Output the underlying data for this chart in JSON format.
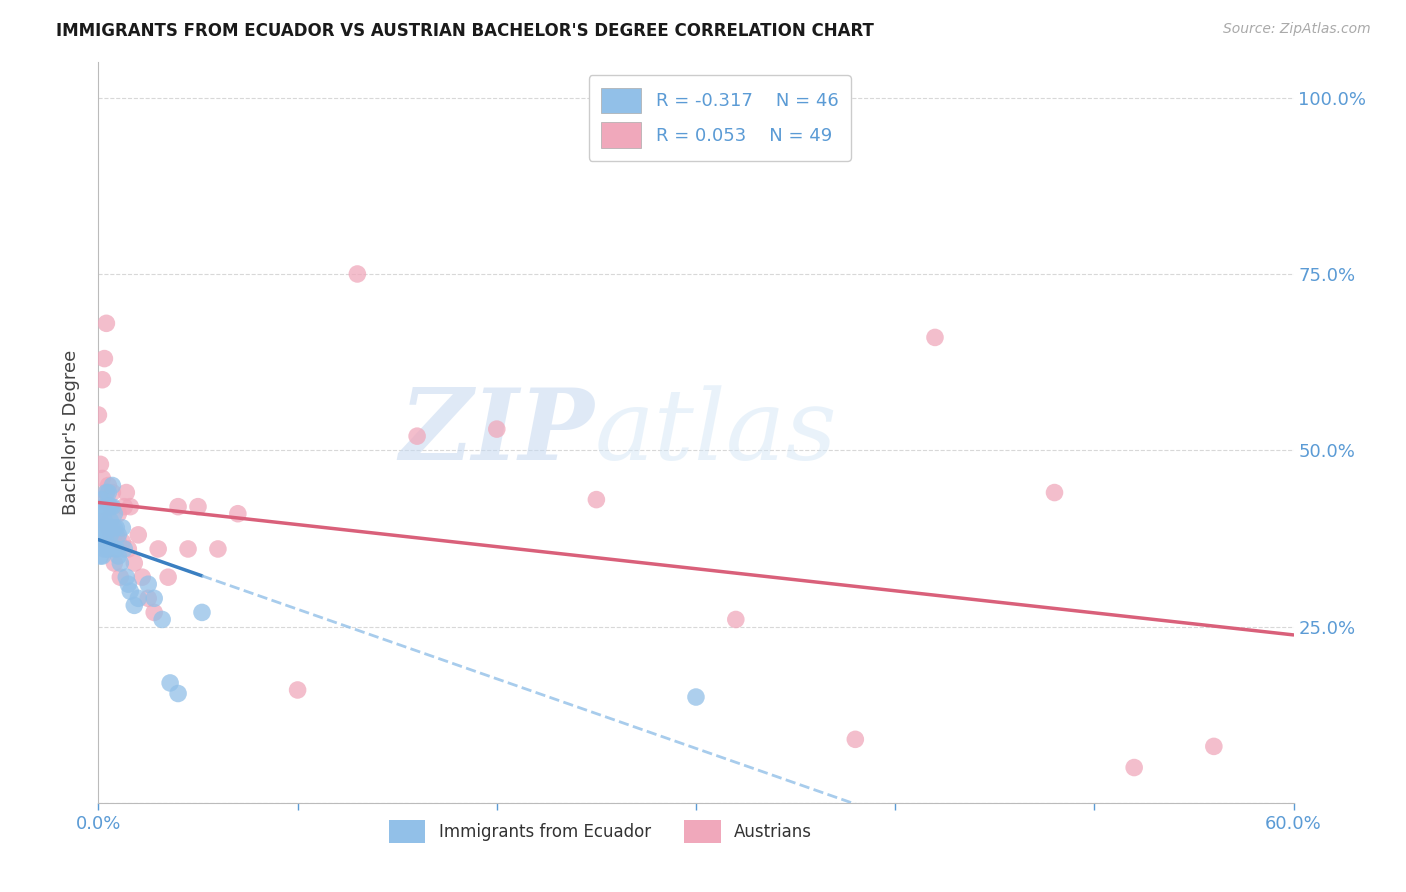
{
  "title": "IMMIGRANTS FROM ECUADOR VS AUSTRIAN BACHELOR'S DEGREE CORRELATION CHART",
  "source": "Source: ZipAtlas.com",
  "ylabel": "Bachelor's Degree",
  "watermark_zip": "ZIP",
  "watermark_atlas": "atlas",
  "background_color": "#ffffff",
  "grid_color": "#c8c8c8",
  "blue_color": "#92c0e8",
  "pink_color": "#f0a8bb",
  "blue_line_color": "#3a7fc1",
  "blue_dash_color": "#92c0e8",
  "pink_line_color": "#d9607a",
  "axis_label_color": "#5b9bd5",
  "title_color": "#1a1a1a",
  "ylabel_color": "#444444",
  "legend_blue_r": "R = -0.317",
  "legend_blue_n": "N = 46",
  "legend_pink_r": "R = 0.053",
  "legend_pink_n": "N = 49",
  "blue_scatter_x": [
    0.0,
    0.001,
    0.001,
    0.001,
    0.002,
    0.002,
    0.002,
    0.003,
    0.003,
    0.003,
    0.003,
    0.004,
    0.004,
    0.004,
    0.004,
    0.005,
    0.005,
    0.005,
    0.005,
    0.006,
    0.006,
    0.006,
    0.007,
    0.007,
    0.008,
    0.008,
    0.008,
    0.009,
    0.009,
    0.01,
    0.01,
    0.011,
    0.012,
    0.013,
    0.014,
    0.015,
    0.016,
    0.018,
    0.02,
    0.025,
    0.028,
    0.032,
    0.036,
    0.04,
    0.052,
    0.3
  ],
  "blue_scatter_y": [
    0.41,
    0.4,
    0.37,
    0.35,
    0.43,
    0.39,
    0.35,
    0.42,
    0.4,
    0.38,
    0.36,
    0.44,
    0.42,
    0.39,
    0.37,
    0.44,
    0.42,
    0.39,
    0.36,
    0.42,
    0.4,
    0.38,
    0.45,
    0.42,
    0.41,
    0.39,
    0.36,
    0.39,
    0.36,
    0.38,
    0.35,
    0.34,
    0.39,
    0.36,
    0.32,
    0.31,
    0.3,
    0.28,
    0.29,
    0.31,
    0.29,
    0.26,
    0.17,
    0.155,
    0.27,
    0.15
  ],
  "pink_scatter_x": [
    0.0,
    0.001,
    0.001,
    0.002,
    0.002,
    0.003,
    0.003,
    0.004,
    0.004,
    0.005,
    0.005,
    0.006,
    0.006,
    0.007,
    0.007,
    0.008,
    0.008,
    0.009,
    0.01,
    0.01,
    0.011,
    0.012,
    0.013,
    0.014,
    0.015,
    0.016,
    0.018,
    0.02,
    0.022,
    0.025,
    0.028,
    0.03,
    0.035,
    0.04,
    0.045,
    0.05,
    0.06,
    0.07,
    0.1,
    0.13,
    0.16,
    0.2,
    0.25,
    0.32,
    0.38,
    0.42,
    0.48,
    0.52,
    0.56
  ],
  "pink_scatter_y": [
    0.55,
    0.48,
    0.43,
    0.6,
    0.46,
    0.63,
    0.4,
    0.68,
    0.44,
    0.39,
    0.45,
    0.38,
    0.42,
    0.44,
    0.39,
    0.34,
    0.38,
    0.38,
    0.37,
    0.41,
    0.32,
    0.37,
    0.42,
    0.44,
    0.36,
    0.42,
    0.34,
    0.38,
    0.32,
    0.29,
    0.27,
    0.36,
    0.32,
    0.42,
    0.36,
    0.42,
    0.36,
    0.41,
    0.16,
    0.75,
    0.52,
    0.53,
    0.43,
    0.26,
    0.09,
    0.66,
    0.44,
    0.05,
    0.08
  ],
  "xmin": 0.0,
  "xmax": 0.6,
  "ymin": 0.0,
  "ymax": 1.05,
  "yticks": [
    0.0,
    0.25,
    0.5,
    0.75,
    1.0
  ],
  "ytick_labels_right": [
    "",
    "25.0%",
    "50.0%",
    "75.0%",
    "100.0%"
  ],
  "xtick_positions": [
    0.0,
    0.1,
    0.2,
    0.3,
    0.4,
    0.5,
    0.6
  ],
  "blue_trend_start_x": 0.0,
  "blue_trend_end_solid_x": 0.052,
  "blue_trend_end_dash_x": 0.6,
  "pink_trend_start_x": 0.0,
  "pink_trend_end_x": 0.6
}
